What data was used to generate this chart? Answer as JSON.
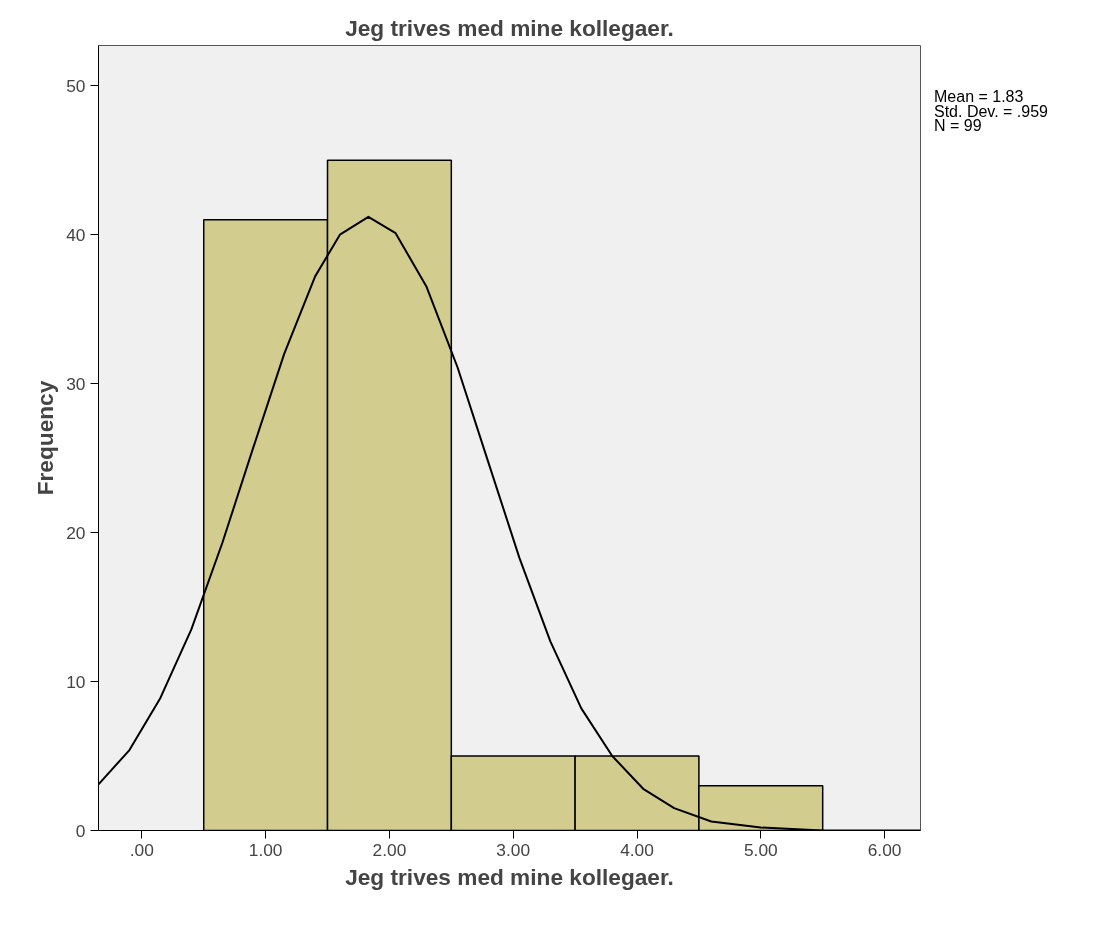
{
  "chart_data": {
    "type": "histogram",
    "title": "Jeg trives med mine kollegaer.",
    "xlabel": "Jeg trives med mine kollegaer.",
    "ylabel": "Frequency",
    "bins": [
      0.5,
      1.5,
      2.5,
      3.5,
      4.5,
      5.5
    ],
    "values": [
      41,
      45,
      5,
      5,
      3
    ],
    "color": "#d2cc8f",
    "series": [
      {
        "type": "line",
        "color": "#000000",
        "x": [
          -0.35,
          -0.1,
          0.15,
          0.4,
          0.65,
          0.9,
          1.15,
          1.4,
          1.6,
          1.83,
          2.05,
          2.3,
          2.55,
          2.8,
          3.05,
          3.3,
          3.55,
          3.8,
          4.05,
          4.3,
          4.6,
          5.0,
          5.5,
          6.0,
          6.29
        ],
        "values": [
          3.1,
          5.4,
          8.9,
          13.5,
          19.3,
          25.7,
          32.0,
          37.2,
          40.0,
          41.2,
          40.1,
          36.5,
          31.1,
          24.7,
          18.3,
          12.7,
          8.2,
          5.0,
          2.8,
          1.5,
          0.6,
          0.2,
          0.0,
          0.0,
          0.0
        ]
      }
    ],
    "xlim": [
      -0.35,
      6.29
    ],
    "ylim": [
      0,
      52.7
    ],
    "xticks": [
      {
        "value": 0,
        "label": ".00"
      },
      {
        "value": 1,
        "label": "1.00"
      },
      {
        "value": 2,
        "label": "2.00"
      },
      {
        "value": 3,
        "label": "3.00"
      },
      {
        "value": 4,
        "label": "4.00"
      },
      {
        "value": 5,
        "label": "5.00"
      },
      {
        "value": 6,
        "label": "6.00"
      }
    ],
    "yticks": [
      0,
      10,
      20,
      30,
      40,
      50
    ],
    "grid": false,
    "annotations": [
      "Mean = 1.83",
      "Std. Dev. = .959",
      "N = 99"
    ]
  }
}
